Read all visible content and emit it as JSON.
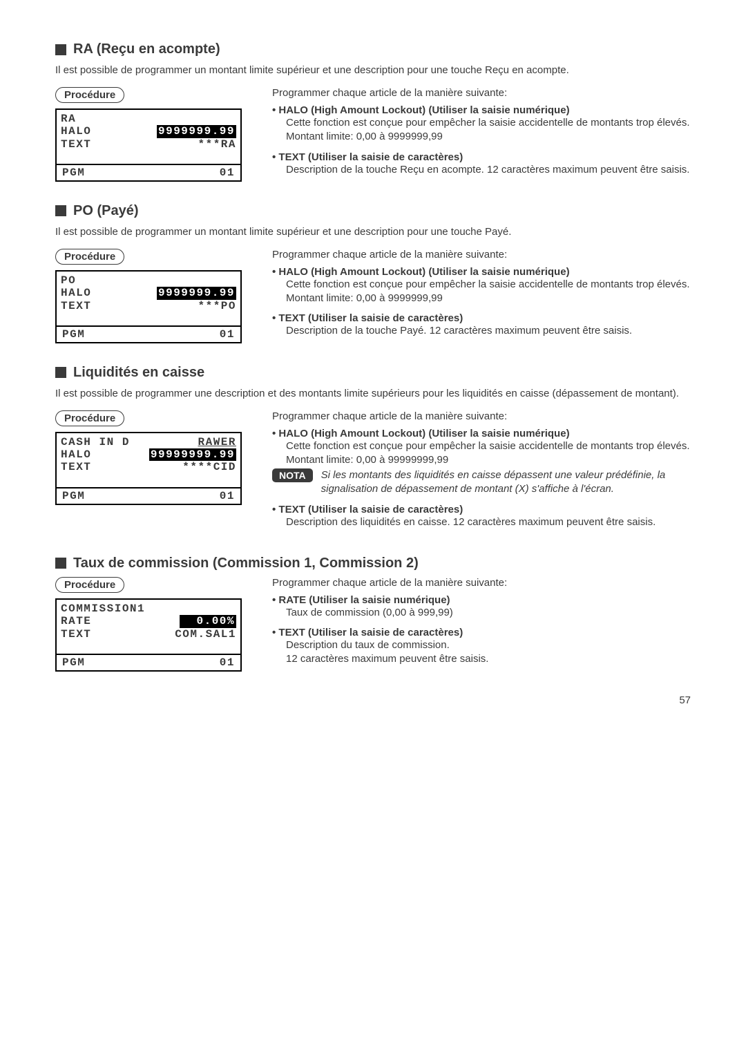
{
  "page_number": "57",
  "sections": {
    "ra": {
      "title": "RA (Reçu en acompte)",
      "intro": "Il est possible de programmer un montant limite supérieur et une description pour une touche Reçu en acompte.",
      "procedure_label": "Procédure",
      "lcd": {
        "r1_left": "RA",
        "r1_right": "",
        "r2_left": "HALO",
        "r2_right": "9999999.99",
        "r3_left": "TEXT",
        "r3_right": "***RA",
        "pgm_left": "PGM",
        "pgm_right": "01"
      },
      "programmer_intro": "Programmer chaque article de la manière suivante:",
      "bullets": {
        "halo_head": "• HALO (High Amount Lockout) (Utiliser la saisie numérique)",
        "halo_body1": "Cette fonction est conçue pour empêcher la saisie accidentelle de montants trop élevés.",
        "halo_body2": "Montant limite: 0,00 à 9999999,99",
        "text_head": "• TEXT (Utiliser la saisie de caractères)",
        "text_body": "Description de la touche Reçu en acompte. 12 caractères maximum peuvent être saisis."
      }
    },
    "po": {
      "title": "PO (Payé)",
      "intro": "Il est possible de programmer un montant limite supérieur et une description pour une touche Payé.",
      "procedure_label": "Procédure",
      "lcd": {
        "r1_left": "PO",
        "r1_right": "",
        "r2_left": "HALO",
        "r2_right": "9999999.99",
        "r3_left": "TEXT",
        "r3_right": "***PO",
        "pgm_left": "PGM",
        "pgm_right": "01"
      },
      "programmer_intro": "Programmer chaque article de la manière suivante:",
      "bullets": {
        "halo_head": "• HALO (High Amount Lockout) (Utiliser la saisie numérique)",
        "halo_body1": "Cette fonction est conçue pour empêcher la saisie accidentelle de montants trop élevés.",
        "halo_body2": "Montant limite: 0,00 à 9999999,99",
        "text_head": "• TEXT (Utiliser la saisie de caractères)",
        "text_body": "Description de la touche Payé. 12 caractères maximum peuvent être saisis."
      }
    },
    "liquid": {
      "title": "Liquidités en caisse",
      "intro": "Il est possible de programmer une description et des montants limite supérieurs pour les liquidités en caisse (dépassement de montant).",
      "procedure_label": "Procédure",
      "lcd": {
        "r1_left": "CASH IN D",
        "r1_right": "RAWER",
        "r2_left": "HALO",
        "r2_right": "99999999.99",
        "r3_left": "TEXT",
        "r3_right": "****CID",
        "pgm_left": "PGM",
        "pgm_right": "01"
      },
      "programmer_intro": "Programmer chaque article de la manière suivante:",
      "bullets": {
        "halo_head": "• HALO (High Amount Lockout) (Utiliser la saisie numérique)",
        "halo_body1": "Cette fonction est conçue pour empêcher la saisie accidentelle de montants trop élevés.",
        "halo_body2": "Montant limite: 0,00 à 99999999,99",
        "nota_label": "NOTA",
        "nota_text": "Si les montants des liquidités en caisse dépassent une valeur prédéfinie, la signalisation de dépassement de montant (X) s'affiche à l'écran.",
        "text_head": "• TEXT (Utiliser la saisie de caractères)",
        "text_body": "Description des liquidités en caisse. 12 caractères maximum peuvent être saisis."
      }
    },
    "comm": {
      "title": "Taux de commission (Commission 1, Commission 2)",
      "procedure_label": "Procédure",
      "lcd": {
        "r1_left": "COMMISSION1",
        "r1_right": "",
        "r2_left": "RATE",
        "r2_right": "  0.00%",
        "r3_left": "TEXT",
        "r3_right": "COM.SAL1",
        "pgm_left": "PGM",
        "pgm_right": "01"
      },
      "programmer_intro": "Programmer chaque article de la manière suivante:",
      "bullets": {
        "rate_head": "• RATE (Utiliser la saisie numérique)",
        "rate_body": "Taux de commission (0,00 à 999,99)",
        "text_head": "• TEXT (Utiliser la saisie de caractères)",
        "text_body1": "Description du taux de commission.",
        "text_body2": "12 caractères maximum peuvent être saisis."
      }
    }
  }
}
